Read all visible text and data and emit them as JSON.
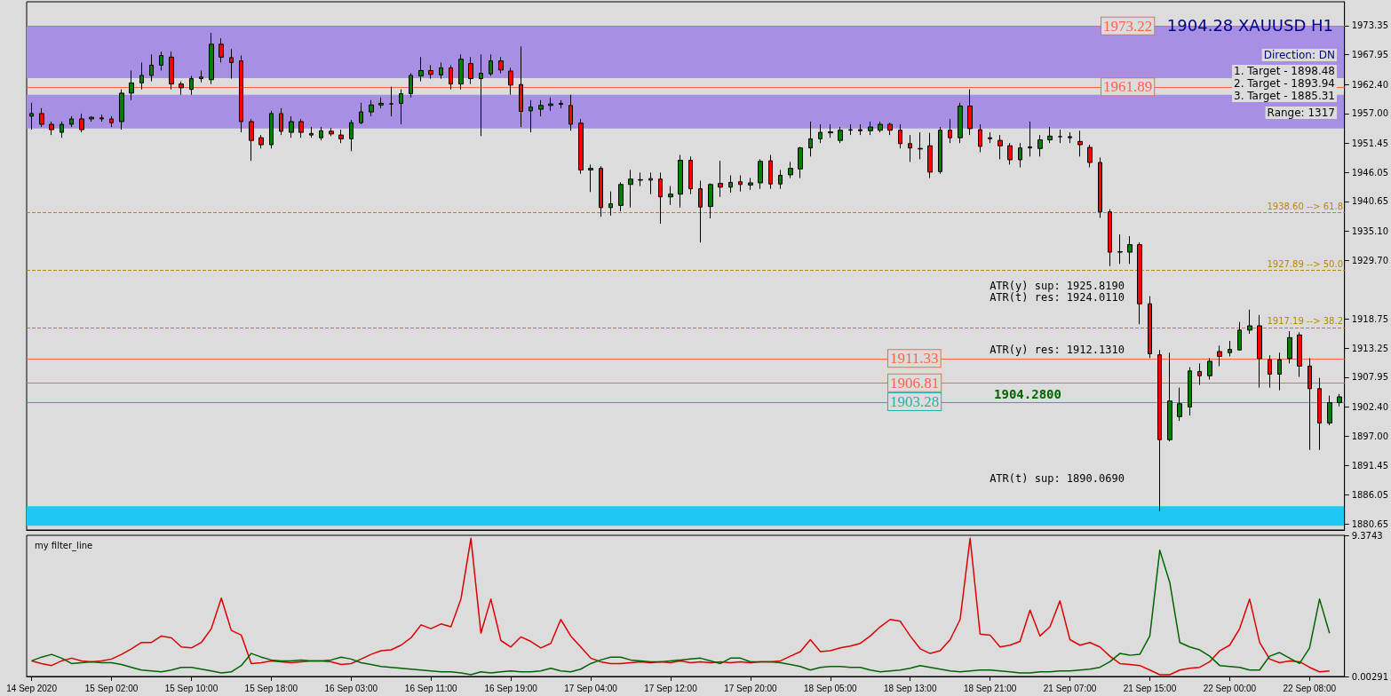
{
  "chart_data": [
    {
      "type": "candlestick",
      "title": "1904.28 XAUUSD H1",
      "categories": [
        null,
        null,
        null,
        null,
        null,
        null,
        null,
        null,
        null,
        null,
        null,
        null,
        null,
        null,
        null,
        null,
        null,
        null,
        null,
        null,
        null,
        null,
        null,
        null,
        null,
        null,
        null,
        null,
        null,
        null,
        null,
        null,
        null,
        null,
        null,
        null,
        null,
        null,
        null,
        null,
        null,
        null,
        null,
        null,
        null,
        null,
        null,
        null,
        null,
        null,
        null,
        null,
        null,
        null,
        null,
        null,
        null,
        null,
        null,
        null,
        null,
        null,
        null,
        null,
        null,
        null,
        null,
        null,
        null,
        null,
        null,
        null,
        null,
        null,
        null,
        null,
        null,
        null,
        null,
        null,
        null,
        null,
        null,
        null,
        null,
        null,
        null,
        null,
        null,
        null,
        null,
        null,
        null,
        null,
        null,
        null,
        null,
        null,
        null,
        null,
        null,
        null,
        null,
        null,
        null,
        null,
        null,
        null,
        null,
        null,
        null,
        null,
        null,
        null,
        null,
        null,
        null,
        null,
        null,
        null,
        null,
        null,
        null,
        null,
        null,
        null,
        null,
        null,
        null,
        null,
        null,
        null
      ],
      "ohlc": [
        [
          1956.5,
          1959,
          1954,
          1957
        ],
        [
          1957,
          1958,
          1954.5,
          1955
        ],
        [
          1955,
          1955.5,
          1953,
          1954
        ],
        [
          1953.5,
          1955.5,
          1952.5,
          1955
        ],
        [
          1955,
          1956.5,
          1954.5,
          1956
        ],
        [
          1956,
          1957,
          1953.5,
          1954
        ],
        [
          1956,
          1956.5,
          1955.5,
          1956.3
        ],
        [
          1956.2,
          1956.8,
          1955.5,
          1956
        ],
        [
          1956,
          1956.5,
          1954.5,
          1955.3
        ],
        [
          1955.5,
          1961.5,
          1954,
          1960.8
        ],
        [
          1960.8,
          1965,
          1959.5,
          1962.7
        ],
        [
          1962.7,
          1966.5,
          1961.5,
          1964.1
        ],
        [
          1964.1,
          1968,
          1963,
          1966
        ],
        [
          1966,
          1968.5,
          1965,
          1967.8
        ],
        [
          1967.5,
          1968.5,
          1961.5,
          1962.5
        ],
        [
          1962.5,
          1963,
          1960.5,
          1961.8
        ],
        [
          1961.5,
          1964,
          1960.5,
          1963.5
        ],
        [
          1963.5,
          1965,
          1962.8,
          1963.8
        ],
        [
          1963.3,
          1972,
          1962.5,
          1969.9
        ],
        [
          1969.9,
          1971,
          1966.5,
          1967.5
        ],
        [
          1967.4,
          1969,
          1963.5,
          1966.5
        ],
        [
          1966.8,
          1967.8,
          1953.5,
          1955.5
        ],
        [
          1955.5,
          1956,
          1948.2,
          1952
        ],
        [
          1952.5,
          1953,
          1950.5,
          1951.2
        ],
        [
          1951.2,
          1957.5,
          1950.5,
          1957
        ],
        [
          1957,
          1958,
          1953,
          1953.7
        ],
        [
          1953.5,
          1956.5,
          1952.5,
          1955.5
        ],
        [
          1955.5,
          1956,
          1952.5,
          1953.5
        ],
        [
          1953.3,
          1954.5,
          1952.5,
          1953
        ],
        [
          1952.5,
          1954.5,
          1952,
          1953.8
        ],
        [
          1953.7,
          1954.3,
          1952.8,
          1953.2
        ],
        [
          1953,
          1954,
          1951.5,
          1952.3
        ],
        [
          1952.3,
          1955.8,
          1950,
          1955.3
        ],
        [
          1955.3,
          1959,
          1955,
          1957.3
        ],
        [
          1957.3,
          1959.5,
          1956.5,
          1958.6
        ],
        [
          1958.6,
          1960,
          1958,
          1958.9
        ],
        [
          1958.8,
          1962,
          1956.5,
          1958.8
        ],
        [
          1958.9,
          1961.5,
          1955,
          1960.7
        ],
        [
          1960.7,
          1964.5,
          1960,
          1964.1
        ],
        [
          1964,
          1967.5,
          1963,
          1965
        ],
        [
          1965,
          1966,
          1963.5,
          1964.3
        ],
        [
          1964.2,
          1966.5,
          1963.5,
          1965.5
        ],
        [
          1965.5,
          1966,
          1961.5,
          1962.5
        ],
        [
          1962.5,
          1968,
          1961.5,
          1967.1
        ],
        [
          1966.3,
          1967.5,
          1962.5,
          1963.5
        ],
        [
          1963.5,
          1968,
          1952.8,
          1964.5
        ],
        [
          1964.4,
          1968,
          1964,
          1966.8
        ],
        [
          1966.8,
          1967.5,
          1964.5,
          1965.1
        ],
        [
          1964.9,
          1965.5,
          1960.5,
          1962.3
        ],
        [
          1962.4,
          1969.5,
          1954.5,
          1957.4
        ],
        [
          1957.5,
          1959.5,
          1953.5,
          1958.2
        ],
        [
          1957.8,
          1959.5,
          1956.5,
          1958.5
        ],
        [
          1958.5,
          1960,
          1957.5,
          1958.8
        ],
        [
          1958.9,
          1959.5,
          1958,
          1958.7
        ],
        [
          1958.5,
          1960.5,
          1953.8,
          1955
        ],
        [
          1955.2,
          1956,
          1945.8,
          1946.5
        ],
        [
          1946.5,
          1947.5,
          1942.4,
          1946.8
        ],
        [
          1946.8,
          1947.2,
          1937.8,
          1939.5
        ],
        [
          1939.5,
          1942.5,
          1938,
          1940.2
        ],
        [
          1939.9,
          1944.2,
          1938.8,
          1943.8
        ],
        [
          1943.8,
          1946.5,
          1939.5,
          1944.8
        ],
        [
          1944.7,
          1946,
          1943.5,
          1944.6
        ],
        [
          1944.6,
          1946,
          1942,
          1944.9
        ],
        [
          1944.8,
          1946,
          1936.5,
          1941.5
        ],
        [
          1941.5,
          1943.5,
          1940,
          1942
        ],
        [
          1942,
          1949.3,
          1939.5,
          1948.3
        ],
        [
          1948.3,
          1949,
          1942,
          1943
        ],
        [
          1943,
          1944.5,
          1933,
          1939.6
        ],
        [
          1939.7,
          1944,
          1937.5,
          1943.8
        ],
        [
          1944,
          1948.2,
          1941.5,
          1943.3
        ],
        [
          1943.3,
          1945.5,
          1942.3,
          1944.2
        ],
        [
          1944.3,
          1945.5,
          1942.5,
          1943.8
        ],
        [
          1943.7,
          1945,
          1942.8,
          1944.1
        ],
        [
          1944.1,
          1948.5,
          1943,
          1948.1
        ],
        [
          1948.2,
          1949.3,
          1943,
          1943.9
        ],
        [
          1943.9,
          1946.5,
          1943,
          1945.5
        ],
        [
          1945.6,
          1948,
          1945,
          1946.8
        ],
        [
          1946.7,
          1950.8,
          1945,
          1950.6
        ],
        [
          1950.6,
          1955.5,
          1949,
          1952.3
        ],
        [
          1952.3,
          1955,
          1951.5,
          1953.5
        ],
        [
          1953.4,
          1955,
          1952.5,
          1953.6
        ],
        [
          1952,
          1954.5,
          1951.5,
          1953.9
        ],
        [
          1953.9,
          1955,
          1953,
          1954
        ],
        [
          1954,
          1955,
          1953,
          1953.8
        ],
        [
          1953.8,
          1955.5,
          1953,
          1954.5
        ],
        [
          1953.9,
          1955.5,
          1953.5,
          1955
        ],
        [
          1955,
          1955.3,
          1953,
          1953.9
        ],
        [
          1953.9,
          1955,
          1950.5,
          1951.4
        ],
        [
          1951.4,
          1953,
          1948,
          1950.6
        ],
        [
          1950.5,
          1953.5,
          1948.5,
          1950.4
        ],
        [
          1951,
          1953.4,
          1945,
          1946.1
        ],
        [
          1946.2,
          1954.5,
          1945.8,
          1953.9
        ],
        [
          1953.9,
          1956,
          1951.5,
          1952.5
        ],
        [
          1952.5,
          1959,
          1951.5,
          1958.4
        ],
        [
          1958.4,
          1961.5,
          1953,
          1954.2
        ],
        [
          1954,
          1955,
          1949.8,
          1950.9
        ],
        [
          1952.5,
          1953.5,
          1951.5,
          1952.3
        ],
        [
          1952,
          1953,
          1948.5,
          1951
        ],
        [
          1951,
          1951.5,
          1947.5,
          1948.4
        ],
        [
          1948.4,
          1951.5,
          1947,
          1950.6
        ],
        [
          1950.6,
          1955.5,
          1949,
          1950.8
        ],
        [
          1950.5,
          1953,
          1949,
          1952.1
        ],
        [
          1952.1,
          1954.5,
          1951.5,
          1952.8
        ],
        [
          1952.7,
          1954,
          1951.5,
          1952.7
        ],
        [
          1952.7,
          1953.5,
          1951.5,
          1952.5
        ],
        [
          1951.8,
          1953.8,
          1949,
          1951.2
        ],
        [
          1950.7,
          1951.2,
          1947,
          1947.9
        ],
        [
          1947.9,
          1948.8,
          1937.6,
          1938.7
        ],
        [
          1938.7,
          1939.2,
          1928.6,
          1931.2
        ],
        [
          1931.3,
          1934.5,
          1929,
          1931.2
        ],
        [
          1931.2,
          1934.2,
          1929,
          1932.6
        ],
        [
          1932.6,
          1933,
          1917.8,
          1921.6
        ],
        [
          1921.6,
          1923,
          1911.5,
          1912.3
        ],
        [
          1912.1,
          1913,
          1883,
          1896.3
        ],
        [
          1896.3,
          1912.5,
          1896,
          1903.5
        ],
        [
          1900.6,
          1906,
          1899.8,
          1903
        ],
        [
          1902.4,
          1909.8,
          1900.8,
          1909.1
        ],
        [
          1909,
          1910.5,
          1906.5,
          1908.2
        ],
        [
          1908.2,
          1911.5,
          1907.5,
          1910.9
        ],
        [
          1912.7,
          1913.8,
          1910,
          1911.8
        ],
        [
          1912.5,
          1914.7,
          1911.8,
          1913.1
        ],
        [
          1913,
          1918.2,
          1913,
          1916.7
        ],
        [
          1916.7,
          1920.5,
          1916,
          1917.5
        ],
        [
          1917.5,
          1919.5,
          1906,
          1911.4
        ],
        [
          1911.2,
          1912,
          1906,
          1908.5
        ],
        [
          1908.5,
          1912.5,
          1905.5,
          1911.2
        ],
        [
          1911.4,
          1916.5,
          1910.5,
          1915.3
        ],
        [
          1915.8,
          1916.3,
          1908,
          1910
        ],
        [
          1910,
          1911.5,
          1894.4,
          1905.8
        ],
        [
          1905.8,
          1907.8,
          1894.4,
          1899.4
        ],
        [
          1899.4,
          1904.5,
          1899,
          1903.2
        ],
        [
          1903.2,
          1904.8,
          1902.5,
          1904.28
        ]
      ],
      "ylim": [
        1879.5,
        1977.8
      ],
      "yticks": [
        1973.35,
        1967.95,
        {
          "value": 1962.4,
          "label": "1962.40"
        },
        {
          "value": 1957,
          "label": "1957.00"
        },
        1951.45,
        1946.05,
        1940.65,
        {
          "value": 1935.1,
          "label": "1935.10"
        },
        {
          "value": 1929.7,
          "label": "1929.70"
        },
        1918.75,
        1913.25,
        1907.95,
        {
          "value": 1902.4,
          "label": "1902.40"
        },
        {
          "value": 1897,
          "label": "1897.00"
        },
        1891.45,
        1886.05,
        1880.65
      ],
      "tick_labels": "y",
      "ref_lines": [
        {
          "axis": "y",
          "value": 1973.22,
          "label": "1973.22",
          "color": "#ff6347",
          "line_style": "solid"
        },
        {
          "axis": "y",
          "value": 1961.89,
          "label": "1961.89",
          "color": "#ff6347",
          "line_style": "solid"
        },
        {
          "axis": "y",
          "value": 1911.33,
          "label": "1911.33",
          "color": "#ff6347",
          "line_style": "solid"
        },
        {
          "axis": "y",
          "value": 1906.81,
          "label": "1906.81",
          "color": "#ff6347",
          "line_style": "solid"
        },
        {
          "axis": "y",
          "value": 1903.28,
          "label": "1903.28",
          "color": "#20b2aa",
          "line_style": "solid"
        },
        {
          "axis": "y",
          "value": 1938.6,
          "label": "1938.60 --> 61.8",
          "color": "#b8860b",
          "line_style": "dashed"
        },
        {
          "axis": "y",
          "value": 1927.89,
          "label": "1927.89 --> 50.0",
          "color": "#b8860b",
          "line_style": "dashed"
        },
        {
          "axis": "y",
          "value": 1917.19,
          "label": "1917.19 --> 38.2",
          "color": "#b8860b",
          "line_style": "dashed"
        }
      ],
      "bands": [
        {
          "axis": "y",
          "from": 1963.6,
          "to": 1973.3,
          "color": "#a78fe3"
        },
        {
          "axis": "y",
          "from": 1954.2,
          "to": 1960.5,
          "color": "#a78fe3"
        },
        {
          "axis": "y",
          "from": 1880.3,
          "to": 1883.9,
          "color": "#1ec8f5"
        }
      ],
      "annotations": [
        "ATR(y) sup: 1925.8190",
        "ATR(t) res: 1924.0110",
        "ATR(y) res: 1912.1310",
        "ATR(t) sup: 1890.0690",
        "1904.2800",
        "Direction: DN",
        "1. Target - 1898.48",
        "2. Target - 1893.94",
        "3. Target - 1885.31",
        "Range: 1317"
      ]
    },
    {
      "type": "line",
      "title": "my filter_line",
      "categories": [
        "14 Sep 2020",
        null,
        null,
        null,
        null,
        null,
        null,
        null,
        "15 Sep 02:00",
        null,
        null,
        null,
        null,
        null,
        null,
        null,
        "15 Sep 10:00",
        null,
        null,
        null,
        null,
        null,
        null,
        null,
        "15 Sep 18:00",
        null,
        null,
        null,
        null,
        null,
        null,
        null,
        "16 Sep 03:00",
        null,
        null,
        null,
        null,
        null,
        null,
        null,
        "16 Sep 11:00",
        null,
        null,
        null,
        null,
        null,
        null,
        null,
        "16 Sep 19:00",
        null,
        null,
        null,
        null,
        null,
        null,
        null,
        "17 Sep 04:00",
        null,
        null,
        null,
        null,
        null,
        null,
        null,
        "17 Sep 12:00",
        null,
        null,
        null,
        null,
        null,
        null,
        null,
        "17 Sep 20:00",
        null,
        null,
        null,
        null,
        null,
        null,
        null,
        "18 Sep 05:00",
        null,
        null,
        null,
        null,
        null,
        null,
        null,
        "18 Sep 13:00",
        null,
        null,
        null,
        null,
        null,
        null,
        null,
        "18 Sep 21:00",
        null,
        null,
        null,
        null,
        null,
        null,
        null,
        "21 Sep 07:00",
        null,
        null,
        null,
        null,
        null,
        null,
        null,
        "21 Sep 15:00",
        null,
        null,
        null,
        null,
        null,
        null,
        null,
        "22 Sep 00:00",
        null,
        null,
        null,
        null,
        null,
        null,
        null,
        "22 Sep 08:00",
        null,
        null,
        null
      ],
      "series": [
        {
          "color": "#dd0000",
          "values": [
            1.04,
            0.86,
            0.73,
            1.04,
            1.22,
            1.04,
            0.98,
            1.04,
            1.16,
            1.47,
            1.84,
            2.26,
            2.26,
            2.69,
            2.57,
            1.96,
            1.9,
            2.26,
            3.18,
            5.2,
            3.06,
            2.75,
            0.86,
            0.92,
            1.04,
            0.98,
            0.92,
            0.98,
            1.04,
            1.04,
            0.98,
            0.8,
            0.86,
            1.16,
            1.47,
            1.71,
            1.77,
            2.08,
            2.57,
            3.43,
            3.18,
            3.49,
            3.3,
            5.14,
            9.18,
            2.88,
            5.14,
            2.39,
            1.96,
            2.63,
            2.33,
            1.9,
            2.2,
            3.79,
            2.69,
            1.96,
            1.22,
            0.98,
            0.86,
            0.86,
            0.92,
            0.98,
            0.92,
            0.98,
            0.92,
            1.04,
            0.92,
            0.98,
            0.92,
            0.98,
            0.92,
            0.98,
            0.92,
            0.98,
            0.98,
            1.04,
            1.35,
            1.65,
            2.45,
            1.65,
            1.71,
            1.9,
            2.02,
            2.2,
            2.69,
            3.3,
            3.79,
            3.67,
            2.69,
            1.84,
            1.53,
            1.71,
            2.45,
            3.79,
            9.18,
            2.82,
            2.75,
            1.96,
            2.08,
            2.33,
            4.41,
            2.69,
            3.3,
            5.02,
            2.45,
            2.08,
            2.26,
            1.96,
            1.35,
            0.86,
            0.8,
            0.73,
            0.43,
            0.12,
            0.12,
            0.43,
            0.55,
            0.61,
            0.98,
            1.71,
            2.08,
            3.18,
            5.14,
            2.26,
            1.16,
            0.92,
            1.04,
            0.98,
            0.61,
            0.31,
            0.37,
            null
          ]
        },
        {
          "color": "#006400",
          "values": [
            1.04,
            1.29,
            1.47,
            1.22,
            0.86,
            0.92,
            0.98,
            0.92,
            0.92,
            0.8,
            0.61,
            0.43,
            0.37,
            0.31,
            0.43,
            0.61,
            0.61,
            0.49,
            0.37,
            0.24,
            0.31,
            0.73,
            1.53,
            1.29,
            1.1,
            1.04,
            1.04,
            1.1,
            1.04,
            1.04,
            1.1,
            1.29,
            1.16,
            0.92,
            0.8,
            0.67,
            0.61,
            0.55,
            0.49,
            0.43,
            0.37,
            0.31,
            0.31,
            0.24,
            0.12,
            0.31,
            0.24,
            0.31,
            0.37,
            0.31,
            0.31,
            0.37,
            0.55,
            0.37,
            0.31,
            0.49,
            0.86,
            1.1,
            1.29,
            1.29,
            1.1,
            1.04,
            0.98,
            0.98,
            1.04,
            1.1,
            1.16,
            1.22,
            1.04,
            0.86,
            1.22,
            1.22,
            0.98,
            0.98,
            0.98,
            0.92,
            0.8,
            0.67,
            0.43,
            0.61,
            0.67,
            0.67,
            0.61,
            0.61,
            0.43,
            0.31,
            0.37,
            0.43,
            0.55,
            0.73,
            0.61,
            0.49,
            0.37,
            0.31,
            0.37,
            0.43,
            0.43,
            0.37,
            0.31,
            0.24,
            0.24,
            0.31,
            0.31,
            0.37,
            0.37,
            0.43,
            0.49,
            0.61,
            0.98,
            1.53,
            1.41,
            1.47,
            2.69,
            8.38,
            6.24,
            2.26,
            1.96,
            1.77,
            1.35,
            0.73,
            0.67,
            0.61,
            0.43,
            0.43,
            1.35,
            1.59,
            1.22,
            0.86,
            1.9,
            5.14,
            2.88,
            null
          ]
        }
      ],
      "ylim": [
        0.00291,
        9.3743
      ],
      "yticks": [
        9.3743,
        0.00291
      ]
    }
  ]
}
